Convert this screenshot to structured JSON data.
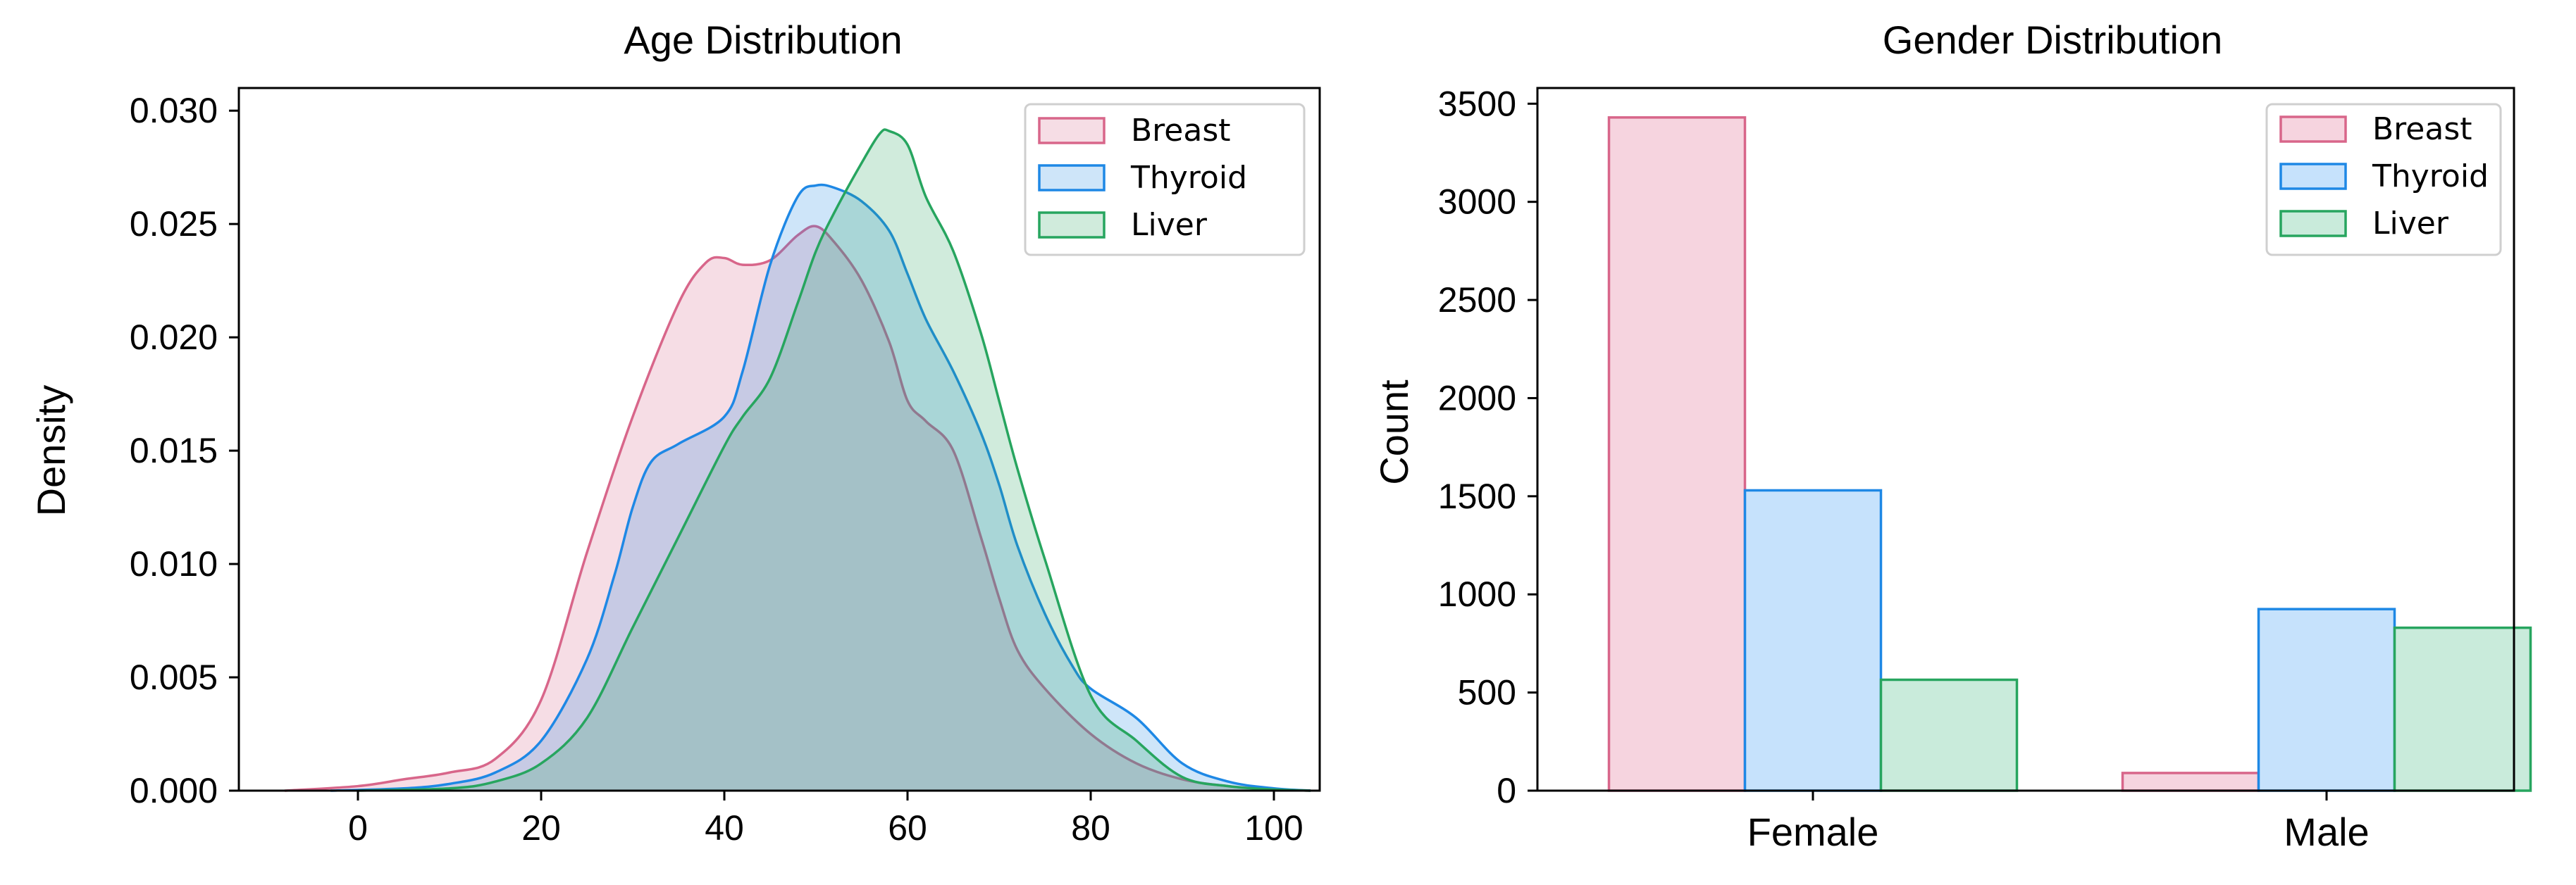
{
  "colors": {
    "breast_edge": "#d8668a",
    "breast_fill": "#f6d4df",
    "thyroid_edge": "#1e88e5",
    "thyroid_fill": "#c6e2fc",
    "liver_edge": "#27a55f",
    "liver_fill": "#c9ebdb"
  },
  "chart_data": [
    {
      "type": "area",
      "title": "Age Distribution",
      "xlabel": "",
      "ylabel": "Density",
      "xlim": [
        -13,
        105
      ],
      "ylim": [
        0,
        0.031
      ],
      "xticks": [
        0,
        20,
        40,
        60,
        80,
        100
      ],
      "yticks": [
        0,
        0.005,
        0.01,
        0.015,
        0.02,
        0.025,
        0.03
      ],
      "ytick_labels": [
        "0.000",
        "0.005",
        "0.010",
        "0.015",
        "0.020",
        "0.025",
        "0.030"
      ],
      "legend_position": "top-right",
      "series": [
        {
          "name": "Breast",
          "x": [
            -8,
            0,
            5,
            10,
            15,
            20,
            25,
            30,
            35,
            38,
            40,
            42,
            45,
            48,
            50,
            52,
            55,
            58,
            60,
            62,
            65,
            68,
            70,
            72,
            75,
            80,
            85,
            90,
            95,
            100,
            104
          ],
          "y": [
            0,
            0.0002,
            0.0005,
            0.0008,
            0.0014,
            0.004,
            0.0105,
            0.0165,
            0.0215,
            0.0233,
            0.0235,
            0.0232,
            0.0234,
            0.0245,
            0.0249,
            0.0242,
            0.0225,
            0.0198,
            0.0172,
            0.0163,
            0.015,
            0.0112,
            0.0085,
            0.0062,
            0.0045,
            0.0025,
            0.0012,
            0.0005,
            0.0002,
            5e-05,
            0
          ]
        },
        {
          "name": "Thyroid",
          "x": [
            -3,
            5,
            10,
            15,
            20,
            25,
            28,
            30,
            32,
            35,
            40,
            42,
            45,
            48,
            50,
            52,
            55,
            58,
            60,
            62,
            65,
            68,
            70,
            72,
            75,
            78,
            80,
            85,
            90,
            95,
            100,
            104
          ],
          "y": [
            0,
            0.0001,
            0.0003,
            0.0008,
            0.0022,
            0.0058,
            0.0095,
            0.0125,
            0.0145,
            0.0153,
            0.0165,
            0.0185,
            0.0232,
            0.0262,
            0.0267,
            0.0266,
            0.026,
            0.0247,
            0.0228,
            0.0208,
            0.0185,
            0.0158,
            0.0135,
            0.0108,
            0.0078,
            0.0055,
            0.0045,
            0.0032,
            0.0012,
            0.0004,
            0.0001,
            0
          ]
        },
        {
          "name": "Liver",
          "x": [
            0,
            10,
            15,
            20,
            25,
            30,
            35,
            40,
            42,
            45,
            48,
            50,
            52,
            55,
            57,
            58,
            60,
            62,
            65,
            68,
            70,
            72,
            75,
            80,
            85,
            90,
            95,
            100,
            104
          ],
          "y": [
            0,
            0.0001,
            0.0004,
            0.0012,
            0.0032,
            0.0072,
            0.0112,
            0.0152,
            0.0165,
            0.0182,
            0.0215,
            0.0238,
            0.0255,
            0.0277,
            0.029,
            0.0291,
            0.0285,
            0.0262,
            0.0238,
            0.0202,
            0.0172,
            0.0142,
            0.0102,
            0.0042,
            0.0022,
            0.0006,
            0.0002,
            5e-05,
            0
          ]
        }
      ]
    },
    {
      "type": "bar",
      "title": "Gender Distribution",
      "xlabel": "",
      "ylabel": "Count",
      "ylim": [
        0,
        3580
      ],
      "yticks": [
        0,
        500,
        1000,
        1500,
        2000,
        2500,
        3000,
        3500
      ],
      "categories": [
        "Female",
        "Male"
      ],
      "legend_position": "top-right",
      "series": [
        {
          "name": "Breast",
          "values": [
            3430,
            90
          ]
        },
        {
          "name": "Thyroid",
          "values": [
            1530,
            925
          ]
        },
        {
          "name": "Liver",
          "values": [
            565,
            830
          ]
        }
      ]
    }
  ]
}
